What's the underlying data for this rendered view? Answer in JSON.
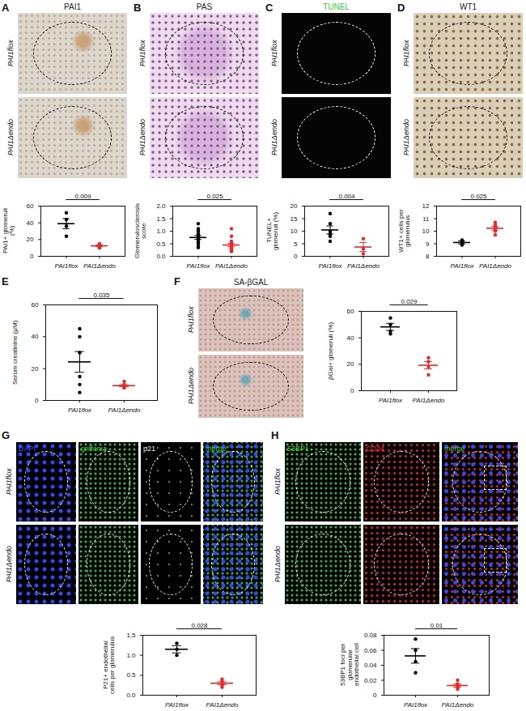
{
  "chart_data": [
    {
      "panel": "A",
      "type": "scatter",
      "image_titles": [
        "PAI1"
      ],
      "image_title_colors": [
        "#222222"
      ],
      "ylabel": "PAI1+ glomeruli (%)",
      "categories": [
        "PAI1flox",
        "PAI1Δendo"
      ],
      "values": [
        [
          52,
          44,
          36,
          24
        ],
        [
          15,
          13,
          10,
          12
        ]
      ],
      "means": [
        39,
        12.5
      ],
      "sems": [
        6,
        1.04
      ],
      "colors": [
        "#000000",
        "#e8292a"
      ],
      "ylim": [
        0,
        60
      ],
      "yticks": [
        0,
        20,
        40,
        60
      ],
      "p_value": 0.009
    },
    {
      "panel": "B",
      "type": "scatter",
      "image_titles": [
        "PAS"
      ],
      "image_title_colors": [
        "#222222"
      ],
      "ylabel": "Glomerulosclerosis score",
      "categories": [
        "PAI1flox",
        "PAI1Δendo"
      ],
      "values": [
        [
          1.3,
          1.1,
          1.0,
          0.9,
          0.85,
          0.8,
          0.75,
          0.7,
          0.6,
          0.55,
          0.5,
          0.4,
          0.35
        ],
        [
          1.1,
          0.8,
          0.6,
          0.5,
          0.45,
          0.4,
          0.35,
          0.3,
          0.3,
          0.25,
          0.2,
          0.2
        ]
      ],
      "means": [
        0.75,
        0.45
      ],
      "sems": [
        0.08,
        0.07
      ],
      "colors": [
        "#000000",
        "#e8292a"
      ],
      "ylim": [
        0,
        2
      ],
      "yticks": [
        {
          "value": 0,
          "label": "0.0"
        },
        {
          "value": 0.5,
          "label": "0.5"
        },
        {
          "value": 1,
          "label": "1.0"
        },
        {
          "value": 1.5,
          "label": "1.5"
        },
        {
          "value": 2,
          "label": "2.0"
        }
      ],
      "p_value": 0.025
    },
    {
      "panel": "C",
      "type": "scatter",
      "image_titles": [
        "TUNEL"
      ],
      "image_title_colors": [
        "#2fcf3a"
      ],
      "ylabel": "TUNEL+ glomeruli (%)",
      "categories": [
        "PAI1flox",
        "PAI1Δendo"
      ],
      "values": [
        [
          17,
          13,
          10,
          9,
          8,
          6
        ],
        [
          7,
          3,
          1
        ]
      ],
      "means": [
        10.5,
        3.7
      ],
      "sems": [
        1.6,
        1.8
      ],
      "colors": [
        "#000000",
        "#e8292a"
      ],
      "ylim": [
        0,
        20
      ],
      "yticks": [
        0,
        5,
        10,
        15,
        20
      ],
      "p_value": 0.004
    },
    {
      "panel": "D",
      "type": "scatter",
      "image_titles": [
        "WT1"
      ],
      "image_title_colors": [
        "#222222"
      ],
      "ylabel": "WT1+ cells per glomerulus",
      "categories": [
        "PAI1flox",
        "PAI1Δendo"
      ],
      "values": [
        [
          9.3,
          9.1,
          8.9
        ],
        [
          10.7,
          10.5,
          10.3,
          10.2,
          10.0,
          9.7
        ]
      ],
      "means": [
        9.1,
        10.23
      ],
      "sems": [
        0.12,
        0.15
      ],
      "colors": [
        "#000000",
        "#e8292a"
      ],
      "ylim": [
        8,
        12
      ],
      "yticks": [
        8,
        9,
        10,
        11,
        12
      ],
      "p_value": 0.025
    },
    {
      "panel": "E",
      "type": "scatter",
      "ylabel": "Serum creatinine (μM)",
      "categories": [
        "PAI1flox",
        "PAI1Δendo"
      ],
      "values": [
        [
          45,
          40,
          30,
          15,
          10,
          5
        ],
        [
          12,
          10,
          9,
          9,
          8,
          8
        ]
      ],
      "means": [
        24.2,
        9.3
      ],
      "sems": [
        6.5,
        0.6
      ],
      "colors": [
        "#000000",
        "#e8292a"
      ],
      "ylim": [
        0,
        60
      ],
      "yticks": [
        0,
        20,
        40,
        60
      ],
      "p_value": 0.035
    },
    {
      "panel": "F",
      "type": "scatter",
      "image_titles": [
        "SA-βGAL"
      ],
      "image_title_colors": [
        "#222222"
      ],
      "ylabel": "βGal+ glomeruli (%)",
      "categories": [
        "PAI1flox",
        "PAI1Δendo"
      ],
      "values": [
        [
          55,
          50,
          45,
          43
        ],
        [
          25,
          22,
          18,
          12
        ]
      ],
      "means": [
        48.25,
        19.25
      ],
      "sems": [
        2.7,
        2.8
      ],
      "colors": [
        "#000000",
        "#e8292a"
      ],
      "ylim": [
        0,
        60
      ],
      "yticks": [
        0,
        20,
        40,
        60
      ],
      "p_value": 0.029
    },
    {
      "panel": "G",
      "type": "scatter",
      "image_titles": [
        "DAPI",
        "griffonia",
        "p21",
        "merge"
      ],
      "image_title_colors": [
        "#3b5bff",
        "#3fd14a",
        "#e6e6e6",
        "#3fd14a"
      ],
      "ylabel": "P21+ endothelial cells per glomerulus",
      "categories": [
        "PAI1flox",
        "PAI1Δendo"
      ],
      "values": [
        [
          1.3,
          1.15,
          1.0
        ],
        [
          0.4,
          0.35,
          0.3,
          0.25,
          0.2
        ]
      ],
      "means": [
        1.15,
        0.3
      ],
      "sems": [
        0.09,
        0.035
      ],
      "colors": [
        "#000000",
        "#e8292a"
      ],
      "ylim": [
        0,
        1.5
      ],
      "yticks": [
        {
          "value": 0,
          "label": "0.0"
        },
        {
          "value": 0.5,
          "label": "0.5"
        },
        {
          "value": 1,
          "label": "1.0"
        },
        {
          "value": 1.5,
          "label": "1.5"
        }
      ],
      "p_value": 0.028
    },
    {
      "panel": "H",
      "type": "scatter",
      "image_titles": [
        "53BP1",
        "CD34",
        "merge"
      ],
      "image_title_colors": [
        "#3fd14a",
        "#ff3030",
        "#3fd14a"
      ],
      "ylabel": "53BP1 foci per glomerular endothelial cell",
      "categories": [
        "PAI1flox",
        "PAI1Δendo"
      ],
      "values": [
        [
          0.075,
          0.06,
          0.045,
          0.03
        ],
        [
          0.02,
          0.015,
          0.012,
          0.01,
          0.008
        ]
      ],
      "means": [
        0.0525,
        0.013
      ],
      "sems": [
        0.0097,
        0.002
      ],
      "colors": [
        "#000000",
        "#e8292a"
      ],
      "ylim": [
        0,
        0.08
      ],
      "yticks": [
        0,
        0.02,
        0.04,
        0.06,
        0.08
      ],
      "p_value": 0.01
    }
  ]
}
